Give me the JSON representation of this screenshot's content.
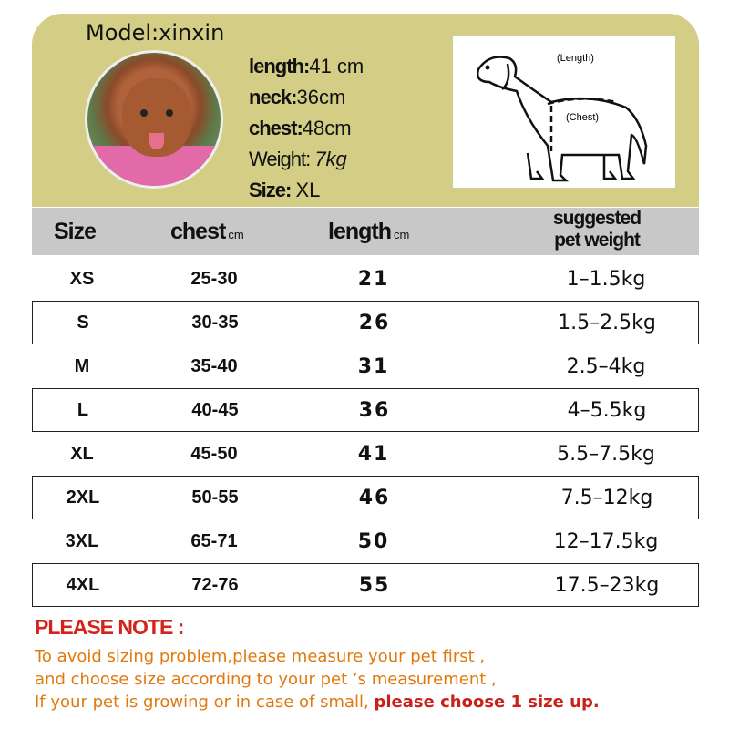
{
  "model": {
    "label": "Model:xinxin",
    "specs": [
      {
        "key": "length:",
        "value": "41 cm"
      },
      {
        "key": "neck:",
        "value": "36cm"
      },
      {
        "key": "chest:",
        "value": "48cm"
      },
      {
        "key": "Weight:",
        "value": "7kg"
      },
      {
        "key": "Size:",
        "value": "XL"
      }
    ]
  },
  "diagram": {
    "length_label": "(Length)",
    "chest_label": "(Chest)"
  },
  "table": {
    "headers": {
      "size": "Size",
      "chest": "chest",
      "chest_unit": "cm",
      "length": "length",
      "length_unit": "cm",
      "weight_line1": "suggested",
      "weight_line2": "pet weight"
    },
    "rows": [
      {
        "size": "XS",
        "chest": "25-30",
        "length": "21",
        "weight": "1–1.5kg"
      },
      {
        "size": "S",
        "chest": "30-35",
        "length": "26",
        "weight": "1.5–2.5kg"
      },
      {
        "size": "M",
        "chest": "35-40",
        "length": "31",
        "weight": "2.5–4kg"
      },
      {
        "size": "L",
        "chest": "40-45",
        "length": "36",
        "weight": "4–5.5kg"
      },
      {
        "size": "XL",
        "chest": "45-50",
        "length": "41",
        "weight": "5.5–7.5kg"
      },
      {
        "size": "2XL",
        "chest": "50-55",
        "length": "46",
        "weight": "7.5–12kg"
      },
      {
        "size": "3XL",
        "chest": "65-71",
        "length": "50",
        "weight": "12–17.5kg"
      },
      {
        "size": "4XL",
        "chest": "72-76",
        "length": "55",
        "weight": "17.5–23kg"
      }
    ]
  },
  "note": {
    "title": "PLEASE NOTE :",
    "line1": "To avoid sizing problem,please measure your pet first ,",
    "line2": "and choose size according to your pet ’s measurement ,",
    "line3a": "If your pet is growing or in case of small, ",
    "line3b": "please choose 1 size up."
  },
  "colors": {
    "panel": "#d3cd85",
    "header": "#c8c8c8",
    "note_title": "#d4231b",
    "note_text": "#e07a10"
  }
}
